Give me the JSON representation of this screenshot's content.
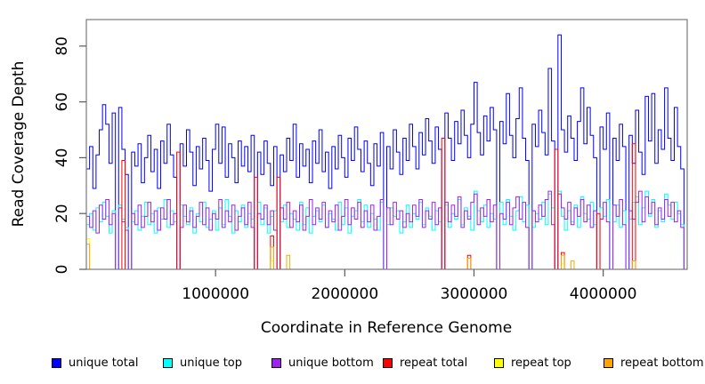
{
  "chart_data": {
    "type": "line",
    "subtype": "step-coverage-plot",
    "title": "",
    "xlabel": "Coordinate in Reference Genome",
    "ylabel": "Read Coverage Depth",
    "xlim": [
      0,
      4650000
    ],
    "ylim": [
      0,
      89.5
    ],
    "x_ticks": [
      1000000,
      2000000,
      3000000,
      4000000
    ],
    "x_tick_labels": [
      "1000000",
      "2000000",
      "3000000",
      "4000000"
    ],
    "y_ticks": [
      0,
      20,
      40,
      60,
      80
    ],
    "y_tick_labels": [
      "0",
      "20",
      "40",
      "60",
      "80"
    ],
    "grid": false,
    "legend_position": "bottom",
    "x_start": 0,
    "x_step": 25000,
    "series": [
      {
        "name": "unique total",
        "color": "#0000FF",
        "values": [
          36,
          44,
          29,
          41,
          50,
          59,
          52,
          38,
          56,
          0,
          58,
          43,
          34,
          0,
          42,
          37,
          45,
          31,
          40,
          48,
          35,
          43,
          29,
          46,
          38,
          52,
          41,
          33,
          0,
          45,
          37,
          50,
          42,
          30,
          44,
          36,
          47,
          39,
          28,
          43,
          52,
          38,
          51,
          33,
          45,
          40,
          31,
          46,
          37,
          44,
          35,
          48,
          0,
          42,
          34,
          46,
          38,
          30,
          44,
          0,
          41,
          35,
          47,
          39,
          52,
          33,
          45,
          37,
          43,
          31,
          46,
          38,
          50,
          35,
          42,
          29,
          44,
          36,
          48,
          40,
          33,
          47,
          39,
          51,
          43,
          35,
          46,
          38,
          30,
          45,
          37,
          49,
          0,
          44,
          36,
          50,
          42,
          34,
          47,
          39,
          52,
          44,
          36,
          49,
          41,
          54,
          46,
          38,
          51,
          43,
          0,
          56,
          47,
          39,
          53,
          45,
          57,
          48,
          40,
          52,
          67,
          49,
          41,
          55,
          46,
          58,
          50,
          0,
          53,
          45,
          63,
          48,
          40,
          54,
          65,
          47,
          39,
          0,
          52,
          44,
          57,
          49,
          41,
          72,
          46,
          0,
          84,
          50,
          42,
          55,
          47,
          39,
          53,
          65,
          45,
          58,
          48,
          40,
          0,
          51,
          43,
          56,
          0,
          47,
          39,
          52,
          44,
          0,
          48,
          38,
          57,
          42,
          34,
          62,
          46,
          63,
          38,
          50,
          43,
          65,
          47,
          39,
          58,
          44,
          36,
          0
        ]
      },
      {
        "name": "unique top",
        "color": "#00FFFF",
        "values": [
          16,
          20,
          14,
          22,
          17,
          24,
          19,
          13,
          21,
          0,
          23,
          18,
          15,
          0,
          17,
          21,
          14,
          19,
          24,
          16,
          20,
          13,
          22,
          18,
          25,
          15,
          21,
          17,
          0,
          23,
          19,
          16,
          22,
          13,
          20,
          17,
          24,
          15,
          18,
          21,
          14,
          22,
          16,
          25,
          19,
          13,
          21,
          17,
          23,
          15,
          20,
          18,
          0,
          24,
          16,
          22,
          13,
          19,
          21,
          0,
          17,
          23,
          15,
          20,
          18,
          14,
          24,
          16,
          22,
          13,
          19,
          21,
          17,
          23,
          15,
          20,
          18,
          14,
          24,
          16,
          22,
          13,
          19,
          21,
          25,
          17,
          23,
          15,
          20,
          18,
          14,
          24,
          0,
          16,
          22,
          19,
          21,
          13,
          17,
          23,
          15,
          20,
          18,
          24,
          16,
          22,
          19,
          14,
          21,
          17,
          0,
          23,
          15,
          20,
          18,
          25,
          16,
          22,
          19,
          14,
          28,
          21,
          17,
          23,
          15,
          20,
          18,
          0,
          24,
          16,
          25,
          19,
          14,
          21,
          26,
          17,
          23,
          0,
          15,
          20,
          18,
          24,
          16,
          27,
          22,
          0,
          28,
          19,
          14,
          21,
          17,
          23,
          15,
          26,
          20,
          18,
          24,
          16,
          0,
          22,
          19,
          25,
          0,
          17,
          23,
          15,
          21,
          0,
          18,
          24,
          26,
          16,
          22,
          28,
          19,
          25,
          15,
          21,
          17,
          27,
          23,
          18,
          24,
          20,
          16,
          0
        ]
      },
      {
        "name": "unique bottom",
        "color": "#A020F0",
        "values": [
          19,
          15,
          21,
          13,
          23,
          18,
          25,
          16,
          20,
          0,
          22,
          17,
          14,
          0,
          20,
          16,
          23,
          15,
          19,
          24,
          17,
          21,
          14,
          22,
          18,
          25,
          16,
          20,
          0,
          15,
          23,
          17,
          21,
          15,
          19,
          24,
          16,
          22,
          14,
          20,
          18,
          25,
          15,
          21,
          17,
          23,
          14,
          19,
          22,
          16,
          24,
          15,
          0,
          20,
          18,
          23,
          16,
          21,
          14,
          0,
          22,
          18,
          24,
          15,
          21,
          17,
          23,
          14,
          19,
          25,
          16,
          22,
          18,
          24,
          15,
          21,
          17,
          23,
          14,
          19,
          25,
          16,
          22,
          18,
          24,
          15,
          21,
          17,
          23,
          14,
          19,
          25,
          0,
          22,
          16,
          24,
          18,
          21,
          15,
          20,
          17,
          23,
          19,
          25,
          15,
          21,
          18,
          24,
          16,
          22,
          0,
          24,
          17,
          23,
          19,
          26,
          15,
          21,
          18,
          24,
          27,
          16,
          22,
          19,
          25,
          17,
          23,
          0,
          20,
          18,
          24,
          16,
          22,
          26,
          18,
          24,
          15,
          0,
          21,
          17,
          23,
          19,
          25,
          28,
          16,
          0,
          27,
          22,
          18,
          24,
          16,
          22,
          19,
          25,
          17,
          23,
          15,
          21,
          0,
          18,
          24,
          17,
          0,
          23,
          19,
          25,
          16,
          0,
          21,
          18,
          24,
          28,
          17,
          26,
          20,
          24,
          16,
          22,
          18,
          25,
          19,
          24,
          17,
          21,
          15,
          0
        ]
      },
      {
        "name": "repeat total",
        "color": "#FF0000",
        "baseline": 0,
        "spikes": {
          "11": 39,
          "28": 42,
          "52": 33,
          "57": 12,
          "59": 33,
          "110": 47,
          "118": 5,
          "145": 43,
          "147": 6,
          "158": 20,
          "169": 45
        }
      },
      {
        "name": "repeat top",
        "color": "#FFFF00",
        "baseline": 0,
        "spikes": {
          "0": 11,
          "57": 3,
          "147": 2
        }
      },
      {
        "name": "repeat bottom",
        "color": "#FFA500",
        "baseline": 0,
        "spikes": {
          "0": 9,
          "57": 8,
          "62": 5,
          "118": 4,
          "147": 5,
          "150": 3,
          "169": 3
        }
      }
    ],
    "legend": [
      {
        "label": "unique total",
        "color": "#0000FF"
      },
      {
        "label": "unique top",
        "color": "#00FFFF"
      },
      {
        "label": "unique bottom",
        "color": "#A020F0"
      },
      {
        "label": "repeat total",
        "color": "#FF0000"
      },
      {
        "label": "repeat top",
        "color": "#FFFF00"
      },
      {
        "label": "repeat bottom",
        "color": "#FFA500"
      }
    ]
  }
}
